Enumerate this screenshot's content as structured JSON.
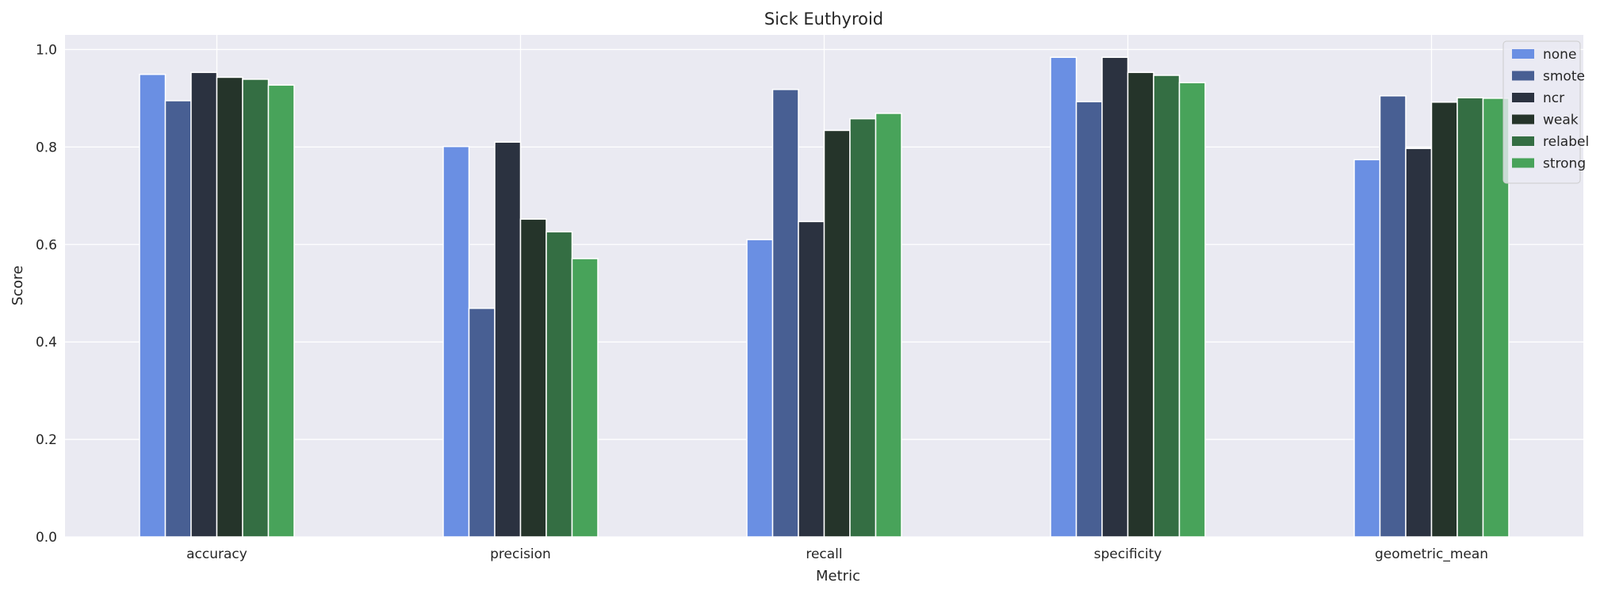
{
  "chart_data": {
    "type": "bar",
    "title": "Sick Euthyroid",
    "xlabel": "Metric",
    "ylabel": "Score",
    "categories": [
      "accuracy",
      "precision",
      "recall",
      "specificity",
      "geometric_mean"
    ],
    "ylim": [
      0,
      1.03
    ],
    "yticks": [
      0.0,
      0.2,
      0.4,
      0.6,
      0.8,
      1.0
    ],
    "ytick_labels": [
      "0.0",
      "0.2",
      "0.4",
      "0.6",
      "0.8",
      "1.0"
    ],
    "grid": true,
    "legend_position": "top-right",
    "series": [
      {
        "name": "none",
        "color": "#6a8fe3",
        "values": [
          0.949,
          0.801,
          0.61,
          0.984,
          0.774
        ]
      },
      {
        "name": "smote",
        "color": "#485f93",
        "values": [
          0.895,
          0.469,
          0.918,
          0.893,
          0.905
        ]
      },
      {
        "name": "ncr",
        "color": "#2b3240",
        "values": [
          0.953,
          0.81,
          0.647,
          0.984,
          0.797
        ]
      },
      {
        "name": "weak",
        "color": "#25342a",
        "values": [
          0.943,
          0.652,
          0.834,
          0.953,
          0.892
        ]
      },
      {
        "name": "relabel",
        "color": "#346e43",
        "values": [
          0.939,
          0.626,
          0.858,
          0.947,
          0.901
        ]
      },
      {
        "name": "strong",
        "color": "#48a35a",
        "values": [
          0.927,
          0.571,
          0.869,
          0.932,
          0.9
        ]
      }
    ]
  }
}
